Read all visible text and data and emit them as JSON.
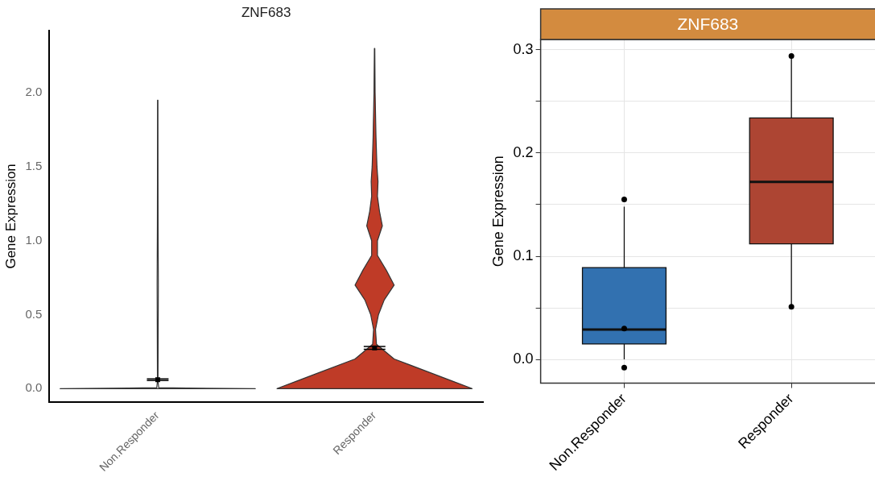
{
  "chart_data": [
    {
      "type": "scatter",
      "title": "ZNF683",
      "ylabel": "Gene Expression",
      "categories": [
        "Non.Responder",
        "Responder"
      ],
      "ylim": [
        -0.09,
        2.42
      ],
      "yticks": [
        {
          "value": 0,
          "label": "0.0"
        },
        {
          "value": 0.5,
          "label": "0.5"
        },
        {
          "value": 1,
          "label": "1.0"
        },
        {
          "value": 1.5,
          "label": "1.5"
        },
        {
          "value": 2,
          "label": "2.0"
        }
      ],
      "grid": false,
      "marker": "square",
      "series": [
        {
          "type": "scatter",
          "color": "#000000",
          "x": [
            "Non.Responder",
            "Responder"
          ],
          "values": [
            0.06,
            0.275
          ],
          "errors": [
            [
              0.055,
              0.065
            ],
            [
              0.265,
              0.285
            ]
          ]
        }
      ]
    },
    {
      "type": "box",
      "title": "ZNF683",
      "ylabel": "Gene Expression",
      "categories": [
        "Non.Responder",
        "Responder"
      ],
      "ylim": [
        -0.023,
        0.31
      ],
      "yticks": [
        {
          "value": 0,
          "label": "0.0"
        },
        {
          "value": 0.05,
          "label": null
        },
        {
          "value": 0.1,
          "label": "0.1"
        },
        {
          "value": 0.15,
          "label": null
        },
        {
          "value": 0.2,
          "label": "0.2"
        },
        {
          "value": 0.25,
          "label": null
        },
        {
          "value": 0.3,
          "label": "0.3"
        }
      ],
      "grid": true,
      "marker": "circle",
      "series": [
        {
          "type": "box",
          "colors": [
            "#3271b0",
            "#ad4533"
          ],
          "boxes": [
            {
              "low": 0,
              "q1": 0.015,
              "median": 0.029,
              "q3": 0.089,
              "high": 0.148
            },
            {
              "low": 0.051,
              "q1": 0.112,
              "median": 0.172,
              "q3": 0.234,
              "high": 0.294
            }
          ]
        },
        {
          "type": "scatter",
          "color": "#000000",
          "x": [
            "Non.Responder",
            "Non.Responder",
            "Non.Responder",
            "Responder",
            "Responder"
          ],
          "values": [
            0.155,
            0.03,
            -0.008,
            0.294,
            0.051
          ]
        }
      ]
    }
  ]
}
